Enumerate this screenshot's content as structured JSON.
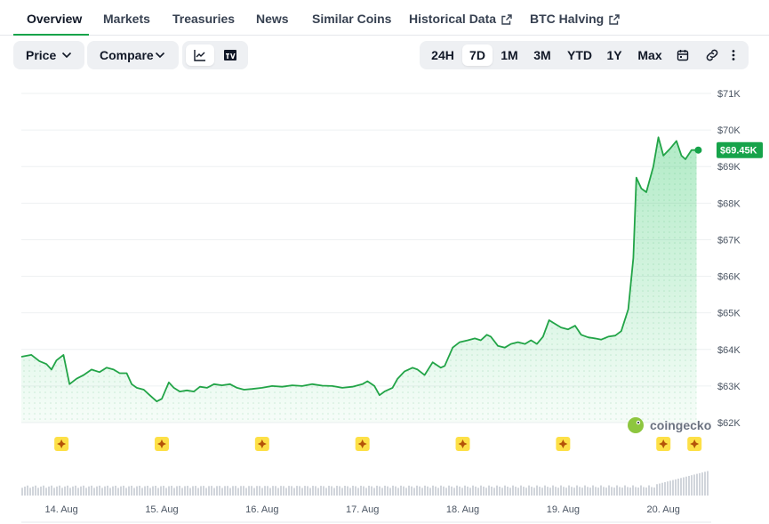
{
  "tabs": [
    {
      "label": "Overview",
      "active": true
    },
    {
      "label": "Markets"
    },
    {
      "label": "Treasuries"
    },
    {
      "label": "News"
    },
    {
      "label": "Similar Coins"
    },
    {
      "label": "Historical Data",
      "external": true
    },
    {
      "label": "BTC Halving",
      "external": true
    }
  ],
  "controls": {
    "price_label": "Price",
    "compare_label": "Compare",
    "chart_types": [
      "line-chart-icon",
      "tradingview-icon"
    ],
    "ranges": [
      "24H",
      "7D",
      "1M",
      "3M",
      "YTD",
      "1Y",
      "Max"
    ],
    "active_range": "7D",
    "extra_icons": [
      "calendar-icon",
      "link-icon",
      "more-icon"
    ]
  },
  "watermark": "coingecko",
  "colors": {
    "accent": "#16a34a",
    "line": "#22a447",
    "price_tag": "#16a34a",
    "event_marker": "#fde047",
    "volume": "#d1d5db"
  },
  "chart_data": {
    "type": "area",
    "title": "",
    "xlabel": "",
    "ylabel": "",
    "x_ticks": [
      "14. Aug",
      "15. Aug",
      "16. Aug",
      "17. Aug",
      "18. Aug",
      "19. Aug",
      "20. Aug"
    ],
    "y_ticks": [
      "$62K",
      "$63K",
      "$64K",
      "$65K",
      "$66K",
      "$67K",
      "$68K",
      "$69K",
      "$70K",
      "$71K"
    ],
    "ylim": [
      62000,
      71000
    ],
    "xlim": [
      13.6,
      20.45
    ],
    "current_price_label": "$69.45K",
    "current_price": 69450,
    "series": [
      {
        "values": [
          [
            13.6,
            63800
          ],
          [
            13.7,
            63850
          ],
          [
            13.78,
            63680
          ],
          [
            13.85,
            63600
          ],
          [
            13.9,
            63450
          ],
          [
            13.95,
            63700
          ],
          [
            14.02,
            63850
          ],
          [
            14.08,
            63050
          ],
          [
            14.15,
            63200
          ],
          [
            14.22,
            63300
          ],
          [
            14.3,
            63450
          ],
          [
            14.38,
            63380
          ],
          [
            14.45,
            63500
          ],
          [
            14.52,
            63450
          ],
          [
            14.58,
            63350
          ],
          [
            14.65,
            63350
          ],
          [
            14.7,
            63050
          ],
          [
            14.75,
            62950
          ],
          [
            14.82,
            62900
          ],
          [
            14.88,
            62750
          ],
          [
            14.95,
            62580
          ],
          [
            15.0,
            62650
          ],
          [
            15.07,
            63100
          ],
          [
            15.12,
            62950
          ],
          [
            15.18,
            62850
          ],
          [
            15.25,
            62880
          ],
          [
            15.32,
            62850
          ],
          [
            15.38,
            62980
          ],
          [
            15.45,
            62950
          ],
          [
            15.52,
            63050
          ],
          [
            15.6,
            63020
          ],
          [
            15.68,
            63050
          ],
          [
            15.75,
            62950
          ],
          [
            15.82,
            62900
          ],
          [
            15.9,
            62920
          ],
          [
            16.0,
            62950
          ],
          [
            16.1,
            63000
          ],
          [
            16.2,
            62980
          ],
          [
            16.3,
            63020
          ],
          [
            16.4,
            63000
          ],
          [
            16.5,
            63050
          ],
          [
            16.6,
            63010
          ],
          [
            16.7,
            63000
          ],
          [
            16.8,
            62950
          ],
          [
            16.9,
            62980
          ],
          [
            17.0,
            63050
          ],
          [
            17.05,
            63130
          ],
          [
            17.12,
            63000
          ],
          [
            17.17,
            62750
          ],
          [
            17.22,
            62850
          ],
          [
            17.3,
            62950
          ],
          [
            17.35,
            63200
          ],
          [
            17.42,
            63400
          ],
          [
            17.5,
            63500
          ],
          [
            17.55,
            63450
          ],
          [
            17.62,
            63300
          ],
          [
            17.7,
            63650
          ],
          [
            17.78,
            63500
          ],
          [
            17.82,
            63550
          ],
          [
            17.9,
            64050
          ],
          [
            17.97,
            64200
          ],
          [
            18.05,
            64250
          ],
          [
            18.12,
            64300
          ],
          [
            18.18,
            64250
          ],
          [
            18.24,
            64400
          ],
          [
            18.28,
            64350
          ],
          [
            18.35,
            64100
          ],
          [
            18.42,
            64050
          ],
          [
            18.48,
            64150
          ],
          [
            18.55,
            64200
          ],
          [
            18.62,
            64150
          ],
          [
            18.68,
            64250
          ],
          [
            18.74,
            64150
          ],
          [
            18.8,
            64350
          ],
          [
            18.86,
            64800
          ],
          [
            18.92,
            64700
          ],
          [
            18.98,
            64600
          ],
          [
            19.05,
            64550
          ],
          [
            19.12,
            64650
          ],
          [
            19.18,
            64400
          ],
          [
            19.25,
            64330
          ],
          [
            19.32,
            64300
          ],
          [
            19.38,
            64270
          ],
          [
            19.45,
            64350
          ],
          [
            19.52,
            64380
          ],
          [
            19.58,
            64500
          ],
          [
            19.65,
            65100
          ],
          [
            19.7,
            66500
          ],
          [
            19.73,
            68700
          ],
          [
            19.78,
            68400
          ],
          [
            19.83,
            68300
          ],
          [
            19.9,
            69000
          ],
          [
            19.95,
            69800
          ],
          [
            20.0,
            69300
          ],
          [
            20.07,
            69500
          ],
          [
            20.13,
            69700
          ],
          [
            20.18,
            69300
          ],
          [
            20.22,
            69200
          ],
          [
            20.28,
            69450
          ],
          [
            20.33,
            69450
          ]
        ]
      }
    ]
  }
}
